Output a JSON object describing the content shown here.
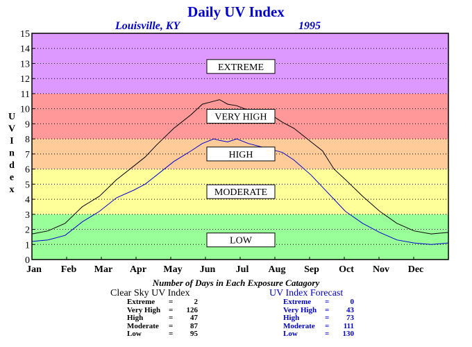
{
  "chart_data": {
    "type": "line",
    "title": "Daily UV Index",
    "subtitle_location": "Louisville, KY",
    "subtitle_year": "1995",
    "ylabel": "UV Index",
    "xlabel": "",
    "ylim": [
      0,
      15
    ],
    "yticks": [
      "0",
      "1",
      "2",
      "3",
      "4",
      "5",
      "6",
      "7",
      "8",
      "9",
      "10",
      "11",
      "12",
      "13",
      "14",
      "15"
    ],
    "months": [
      "Jan",
      "Feb",
      "Mar",
      "Apr",
      "May",
      "Jun",
      "Jul",
      "Aug",
      "Sep",
      "Oct",
      "Nov",
      "Dec"
    ],
    "grid": true,
    "bands": [
      {
        "label": "LOW",
        "from": 0,
        "to": 3,
        "color": "#99ff99",
        "label_y": 1.3
      },
      {
        "label": "MODERATE",
        "from": 3,
        "to": 6,
        "color": "#ffff99",
        "label_y": 4.5
      },
      {
        "label": "HIGH",
        "from": 6,
        "to": 8,
        "color": "#ffcc99",
        "label_y": 7
      },
      {
        "label": "VERY HIGH",
        "from": 8,
        "to": 11,
        "color": "#ff9999",
        "label_y": 9.5
      },
      {
        "label": "EXTREME",
        "from": 11,
        "to": 15,
        "color": "#dd99ff",
        "label_y": 12.8
      }
    ],
    "series": [
      {
        "color": "#000000",
        "points": [
          [
            1,
            1.7
          ],
          [
            15,
            1.9
          ],
          [
            30,
            2.4
          ],
          [
            45,
            3.5
          ],
          [
            60,
            4.2
          ],
          [
            75,
            5.3
          ],
          [
            90,
            6.2
          ],
          [
            100,
            6.8
          ],
          [
            110,
            7.6
          ],
          [
            125,
            8.7
          ],
          [
            140,
            9.6
          ],
          [
            150,
            10.3
          ],
          [
            160,
            10.5
          ],
          [
            165,
            10.6
          ],
          [
            172,
            10.3
          ],
          [
            180,
            10.2
          ],
          [
            190,
            9.9
          ],
          [
            200,
            9.8
          ],
          [
            210,
            9.6
          ],
          [
            220,
            9.1
          ],
          [
            230,
            8.7
          ],
          [
            245,
            7.8
          ],
          [
            255,
            7.2
          ],
          [
            265,
            6.0
          ],
          [
            275,
            5.3
          ],
          [
            290,
            4.2
          ],
          [
            305,
            3.2
          ],
          [
            320,
            2.4
          ],
          [
            335,
            1.9
          ],
          [
            350,
            1.7
          ],
          [
            365,
            1.8
          ]
        ]
      },
      {
        "color": "#0000cc",
        "points": [
          [
            1,
            1.2
          ],
          [
            15,
            1.3
          ],
          [
            30,
            1.6
          ],
          [
            45,
            2.5
          ],
          [
            60,
            3.2
          ],
          [
            75,
            4.1
          ],
          [
            90,
            4.6
          ],
          [
            100,
            5.0
          ],
          [
            110,
            5.6
          ],
          [
            125,
            6.5
          ],
          [
            140,
            7.2
          ],
          [
            150,
            7.7
          ],
          [
            160,
            8.0
          ],
          [
            165,
            7.9
          ],
          [
            172,
            7.8
          ],
          [
            180,
            8.0
          ],
          [
            190,
            7.7
          ],
          [
            200,
            7.5
          ],
          [
            210,
            7.3
          ],
          [
            220,
            7.1
          ],
          [
            230,
            6.6
          ],
          [
            245,
            5.6
          ],
          [
            255,
            4.8
          ],
          [
            265,
            4.0
          ],
          [
            275,
            3.2
          ],
          [
            290,
            2.4
          ],
          [
            305,
            1.8
          ],
          [
            320,
            1.3
          ],
          [
            335,
            1.1
          ],
          [
            350,
            1.0
          ],
          [
            365,
            1.1
          ]
        ]
      }
    ]
  },
  "stats": {
    "heading": "Number of Days in Each Exposure Catagory",
    "clear_sky": {
      "title": "Clear Sky UV Index",
      "color": "#000000",
      "rows": [
        {
          "label": "Extreme",
          "value": "2"
        },
        {
          "label": "Very High",
          "value": "126"
        },
        {
          "label": "High",
          "value": "47"
        },
        {
          "label": "Moderate",
          "value": "87"
        },
        {
          "label": "Low",
          "value": "95"
        }
      ]
    },
    "forecast": {
      "title": "UV Index Forecast",
      "color": "#0000cc",
      "rows": [
        {
          "label": "Extreme",
          "value": "0"
        },
        {
          "label": "Very High",
          "value": "43"
        },
        {
          "label": "High",
          "value": "73"
        },
        {
          "label": "Moderate",
          "value": "111"
        },
        {
          "label": "Low",
          "value": "130"
        }
      ]
    }
  }
}
